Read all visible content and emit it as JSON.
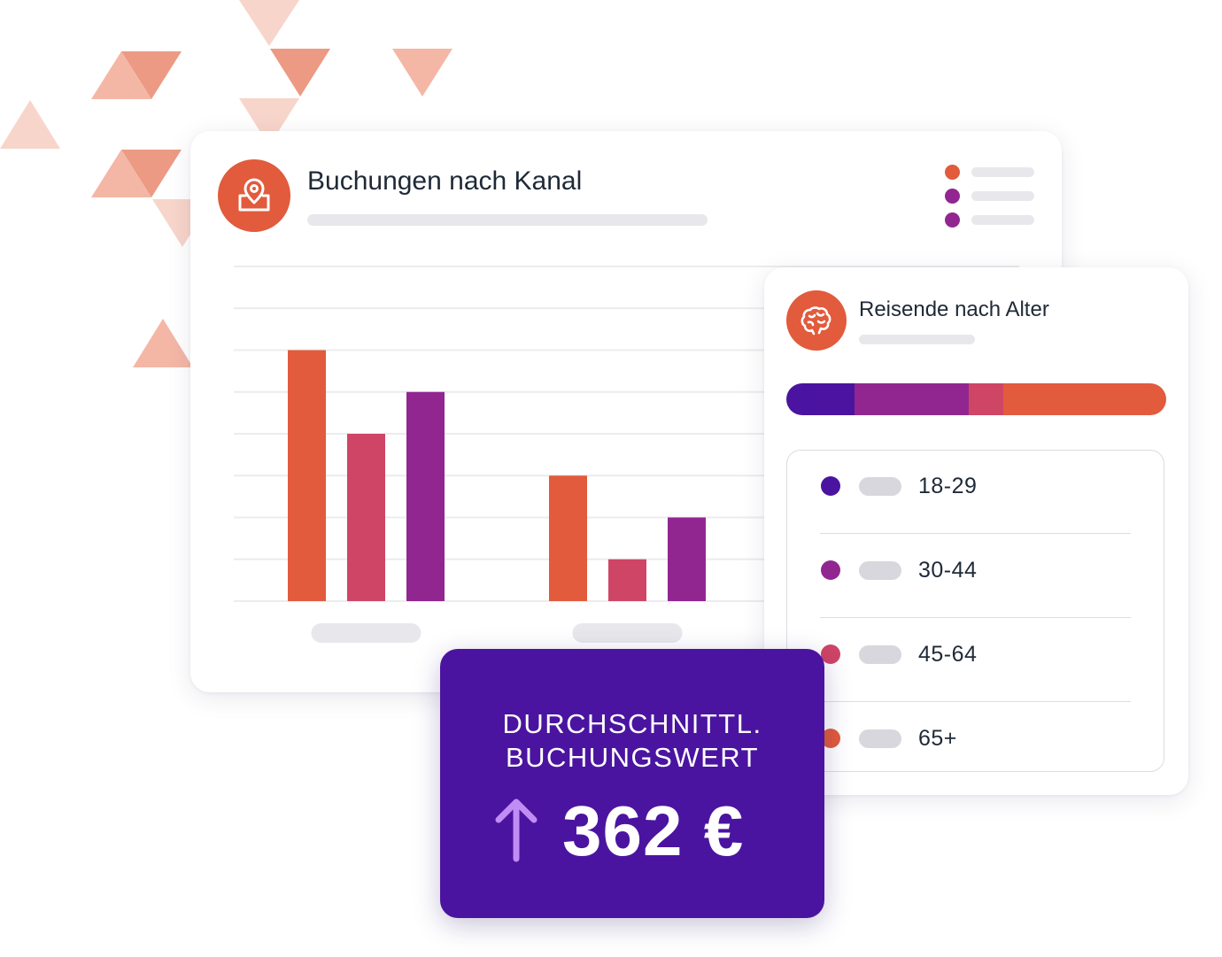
{
  "colors": {
    "accent_orange": "#e15b3c",
    "crimson": "#cf4566",
    "magenta": "#922691",
    "deep_purple": "#4a14a0",
    "arrow_lilac": "#c18cf4"
  },
  "channel_card": {
    "title": "Buchungen nach Kanal",
    "icon": "location-pin-box-icon",
    "legend_colors": [
      "#e15b3c",
      "#922691",
      "#922691"
    ]
  },
  "chart_data": {
    "type": "bar",
    "title": "Buchungen nach Kanal",
    "categories": [
      "",
      ""
    ],
    "series": [
      {
        "color": "#e15b3c",
        "values": [
          6,
          3
        ]
      },
      {
        "color": "#cf4566",
        "values": [
          4,
          1
        ]
      },
      {
        "color": "#922691",
        "values": [
          5,
          2
        ]
      }
    ],
    "ylim": [
      0,
      8
    ],
    "grid": true,
    "xlabel": "",
    "ylabel": ""
  },
  "age_card": {
    "title": "Reisende nach Alter",
    "icon": "brain-icon",
    "stack_segments": [
      {
        "color": "#4a14a0",
        "value": 18
      },
      {
        "color": "#922691",
        "value": 30
      },
      {
        "color": "#cf4566",
        "value": 9
      },
      {
        "color": "#e15b3c",
        "value": 43
      }
    ],
    "groups": [
      {
        "label": "18-29",
        "color": "#4a14a0"
      },
      {
        "label": "30-44",
        "color": "#922691"
      },
      {
        "label": "45-64",
        "color": "#cf4566"
      },
      {
        "label": "65+",
        "color": "#e15b3c"
      }
    ]
  },
  "kpi": {
    "line1": "DURCHSCHNITTL.",
    "line2": "BUCHUNGSWERT",
    "value": "362 €",
    "trend_icon": "arrow-up-icon"
  }
}
